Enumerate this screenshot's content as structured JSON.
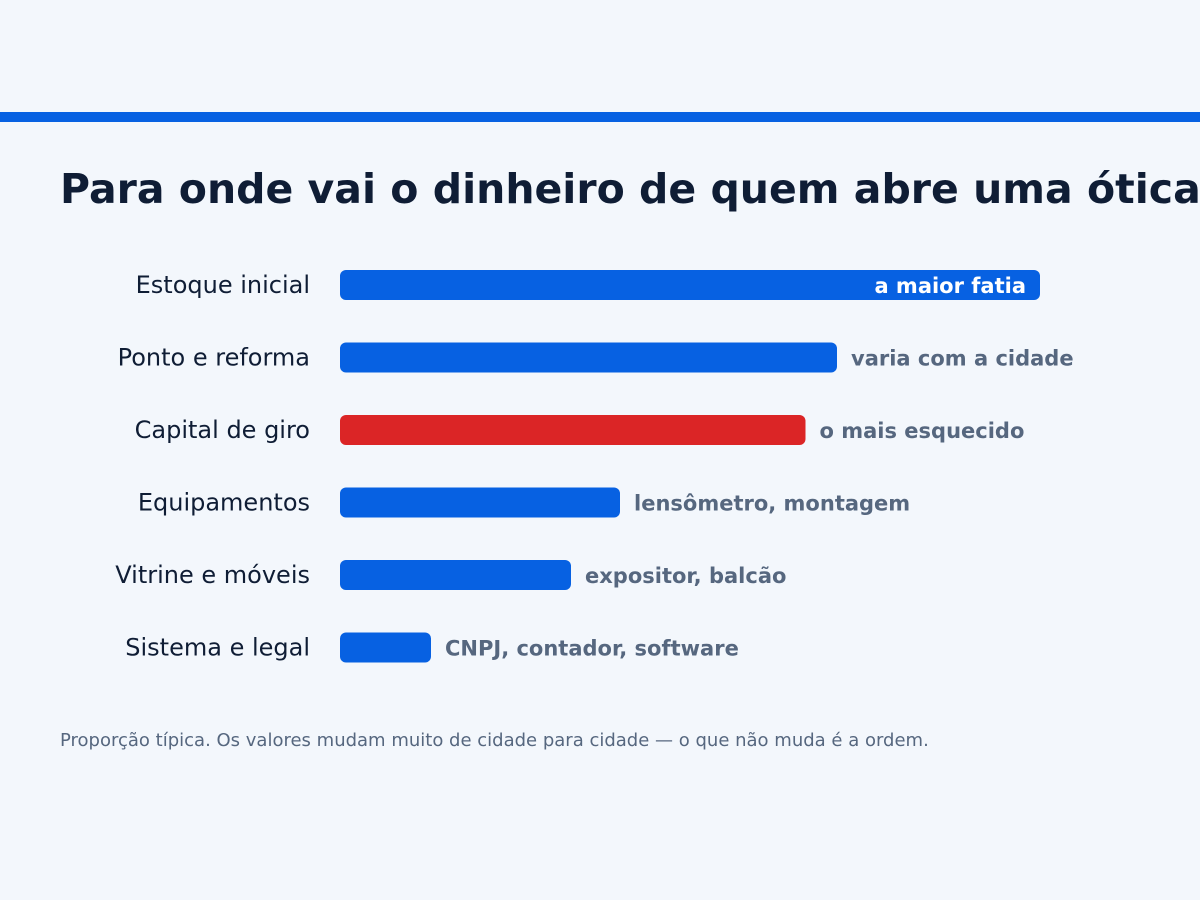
{
  "title": "Para onde vai o dinheiro de quem abre uma ótica",
  "footnote": "Proporção típica. Os valores mudam muito de cidade para cidade — o que não muda é a ordem.",
  "colors": {
    "accent": "#0761e2",
    "highlight": "#db2526",
    "background": "#f3f7fc",
    "title_text": "#0f1d35",
    "note_text": "#56677f",
    "inside_note_text": "#ffffff"
  },
  "chart_data": {
    "type": "bar",
    "orientation": "horizontal",
    "title": "Para onde vai o dinheiro de quem abre uma ótica",
    "xlabel": "",
    "ylabel": "",
    "xlim": [
      0,
      100
    ],
    "grid": false,
    "legend": "none",
    "categories": [
      "Estoque inicial",
      "Ponto e reforma",
      "Capital de giro",
      "Equipamentos",
      "Vitrine e móveis",
      "Sistema e legal"
    ],
    "values": [
      100,
      71,
      66.5,
      40,
      33,
      13
    ],
    "annotations": [
      "a maior fatia",
      "varia com a cidade",
      "o mais esquecido",
      "lensômetro, montagem",
      "expositor, balcão",
      "CNPJ, contador, software"
    ],
    "annotation_inside": [
      true,
      false,
      false,
      false,
      false,
      false
    ],
    "highlighted": [
      false,
      false,
      true,
      false,
      false,
      false
    ]
  }
}
